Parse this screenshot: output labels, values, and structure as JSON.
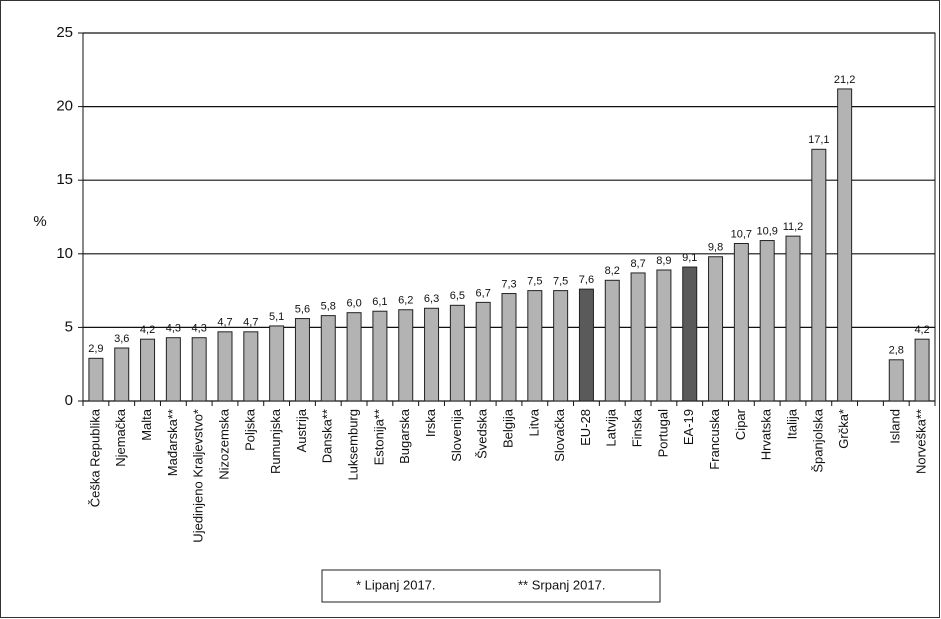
{
  "chart_data": {
    "type": "bar",
    "ylabel": "%",
    "categories": [
      "Češka Republika",
      "Njemačka",
      "Malta",
      "Mađarska**",
      "Ujedinjeno Kraljevstvo*",
      "Nizozemska",
      "Poljska",
      "Rumunjska",
      "Austrija",
      "Danska**",
      "Luksemburg",
      "Estonija**",
      "Bugarska",
      "Irska",
      "Slovenija",
      "Švedska",
      "Belgija",
      "Litva",
      "Slovačka",
      "EU-28",
      "Latvija",
      "Finska",
      "Portugal",
      "EA-19",
      "Francuska",
      "Cipar",
      "Hrvatska",
      "Italija",
      "Španjolska",
      "Grčka*",
      null,
      "Island",
      "Norveška**"
    ],
    "values": [
      2.9,
      3.6,
      4.2,
      4.3,
      4.3,
      4.7,
      4.7,
      5.1,
      5.6,
      5.8,
      6.0,
      6.1,
      6.2,
      6.3,
      6.5,
      6.7,
      7.3,
      7.5,
      7.5,
      7.6,
      8.2,
      8.7,
      8.9,
      9.1,
      9.8,
      10.7,
      10.9,
      11.2,
      17.1,
      21.2,
      null,
      2.8,
      4.2
    ],
    "value_labels": [
      "2,9",
      "3,6",
      "4,2",
      "4,3",
      "4,3",
      "4,7",
      "4,7",
      "5,1",
      "5,6",
      "5,8",
      "6,0",
      "6,1",
      "6,2",
      "6,3",
      "6,5",
      "6,7",
      "7,3",
      "7,5",
      "7,5",
      "7,6",
      "8,2",
      "8,7",
      "8,9",
      "9,1",
      "9,8",
      "10,7",
      "10,9",
      "11,2",
      "17,1",
      "21,2",
      null,
      "2,8",
      "4,2"
    ],
    "colors": [
      "#b3b3b3",
      "#b3b3b3",
      "#b3b3b3",
      "#b3b3b3",
      "#b3b3b3",
      "#b3b3b3",
      "#b3b3b3",
      "#b3b3b3",
      "#b3b3b3",
      "#b3b3b3",
      "#b3b3b3",
      "#b3b3b3",
      "#b3b3b3",
      "#b3b3b3",
      "#b3b3b3",
      "#b3b3b3",
      "#b3b3b3",
      "#b3b3b3",
      "#b3b3b3",
      "#5a5a5a",
      "#b3b3b3",
      "#b3b3b3",
      "#b3b3b3",
      "#5a5a5a",
      "#b3b3b3",
      "#b3b3b3",
      "#b3b3b3",
      "#b3b3b3",
      "#b3b3b3",
      "#b3b3b3",
      null,
      "#b3b3b3",
      "#b3b3b3"
    ],
    "ylim": [
      0,
      25
    ],
    "yticks": [
      0,
      5,
      10,
      15,
      20,
      25
    ],
    "grid": true,
    "notes": [
      "* Lipanj 2017.",
      "** Srpanj 2017."
    ]
  }
}
